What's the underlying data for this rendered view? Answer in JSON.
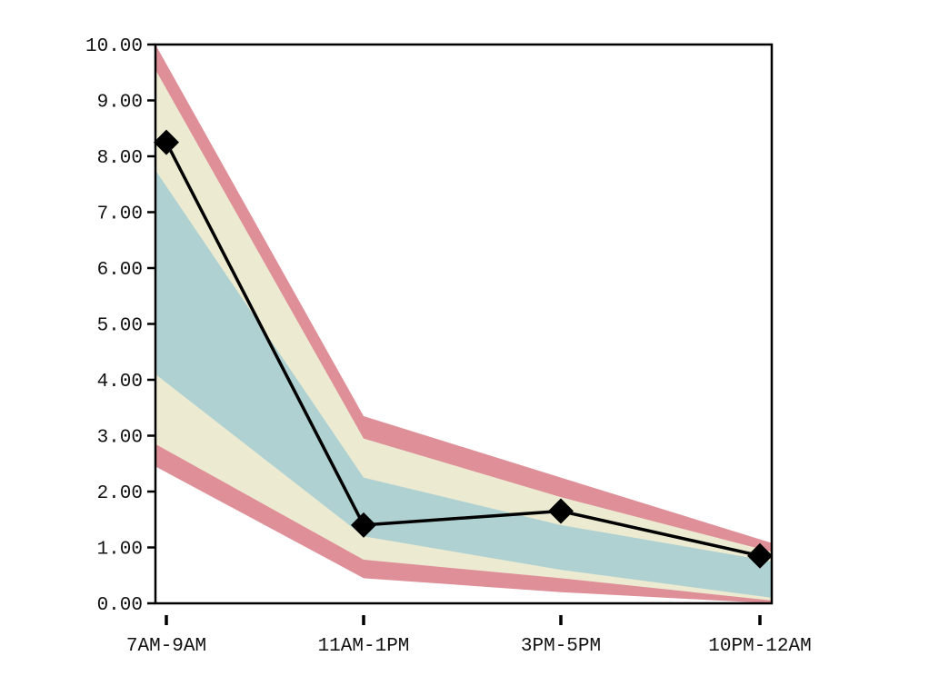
{
  "chart_data": {
    "type": "line",
    "title": "",
    "xlabel": "",
    "ylabel": "",
    "categories": [
      "7AM-9AM",
      "11AM-1PM",
      "3PM-5PM",
      "10PM-12AM"
    ],
    "series": [
      {
        "values": [
          8.25,
          1.4,
          1.65,
          0.85
        ]
      }
    ],
    "bands": [
      {
        "level": "outer",
        "color": "#df8f98",
        "upper": [
          10.0,
          3.35,
          2.25,
          1.08
        ],
        "lower": [
          2.45,
          0.45,
          0.2,
          0.0
        ]
      },
      {
        "level": "middle",
        "color": "#ecebd2",
        "upper": [
          9.55,
          2.95,
          1.9,
          0.92
        ],
        "lower": [
          2.85,
          0.78,
          0.45,
          0.05
        ]
      },
      {
        "level": "inner",
        "color": "#afd1d1",
        "upper": [
          7.75,
          2.25,
          1.4,
          0.75
        ],
        "lower": [
          4.1,
          1.2,
          0.6,
          0.1
        ]
      }
    ],
    "ylim": [
      0,
      10
    ],
    "yticks": [
      "0.00",
      "1.00",
      "2.00",
      "3.00",
      "4.00",
      "5.00",
      "6.00",
      "7.00",
      "8.00",
      "9.00",
      "10.00"
    ],
    "grid": false,
    "legend": "none",
    "line_color": "#000000",
    "marker": "diamond"
  }
}
